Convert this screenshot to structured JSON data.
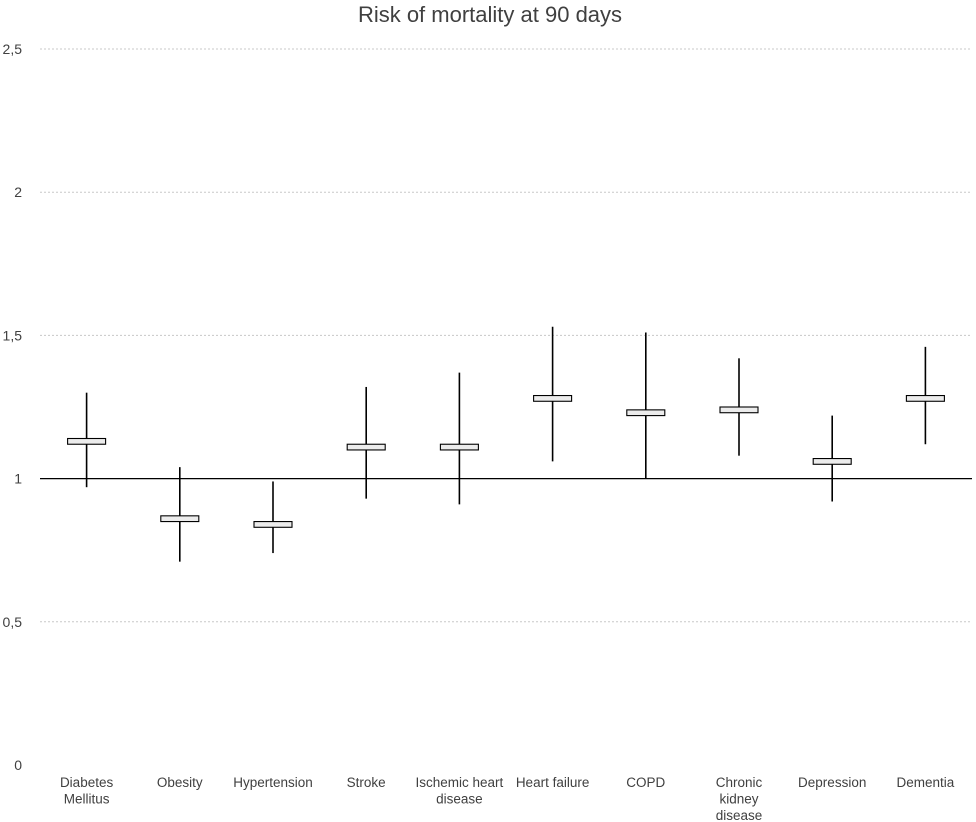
{
  "chart_data": {
    "type": "box",
    "title": "Risk of mortality at 90 days",
    "xlabel": "",
    "ylabel": "",
    "ylim": [
      0,
      2.5
    ],
    "y_ticks": [
      0,
      0.5,
      1,
      1.5,
      2,
      2.5
    ],
    "y_tick_labels": [
      "0",
      "0,5",
      "1",
      "1,5",
      "2",
      "2,5"
    ],
    "reference_line": 1,
    "grid": true,
    "categories": [
      [
        "Diabetes",
        "Mellitus"
      ],
      [
        "Obesity"
      ],
      [
        "Hypertension"
      ],
      [
        "Stroke"
      ],
      [
        "Ischemic heart",
        "disease"
      ],
      [
        "Heart failure"
      ],
      [
        "COPD"
      ],
      [
        "Chronic",
        "kidney",
        "disease"
      ],
      [
        "Depression"
      ],
      [
        "Dementia"
      ]
    ],
    "series": [
      {
        "name": "Risk of mortality at 90 days",
        "points": [
          {
            "low": 0.97,
            "q1": 1.12,
            "q3": 1.14,
            "high": 1.3
          },
          {
            "low": 0.71,
            "q1": 0.85,
            "q3": 0.87,
            "high": 1.04
          },
          {
            "low": 0.74,
            "q1": 0.83,
            "q3": 0.85,
            "high": 0.99
          },
          {
            "low": 0.93,
            "q1": 1.1,
            "q3": 1.12,
            "high": 1.32
          },
          {
            "low": 0.91,
            "q1": 1.1,
            "q3": 1.12,
            "high": 1.37
          },
          {
            "low": 1.06,
            "q1": 1.27,
            "q3": 1.29,
            "high": 1.53
          },
          {
            "low": 1.0,
            "q1": 1.22,
            "q3": 1.24,
            "high": 1.51
          },
          {
            "low": 1.08,
            "q1": 1.23,
            "q3": 1.25,
            "high": 1.42
          },
          {
            "low": 0.92,
            "q1": 1.05,
            "q3": 1.07,
            "high": 1.22
          },
          {
            "low": 1.12,
            "q1": 1.27,
            "q3": 1.29,
            "high": 1.46
          }
        ]
      }
    ]
  }
}
